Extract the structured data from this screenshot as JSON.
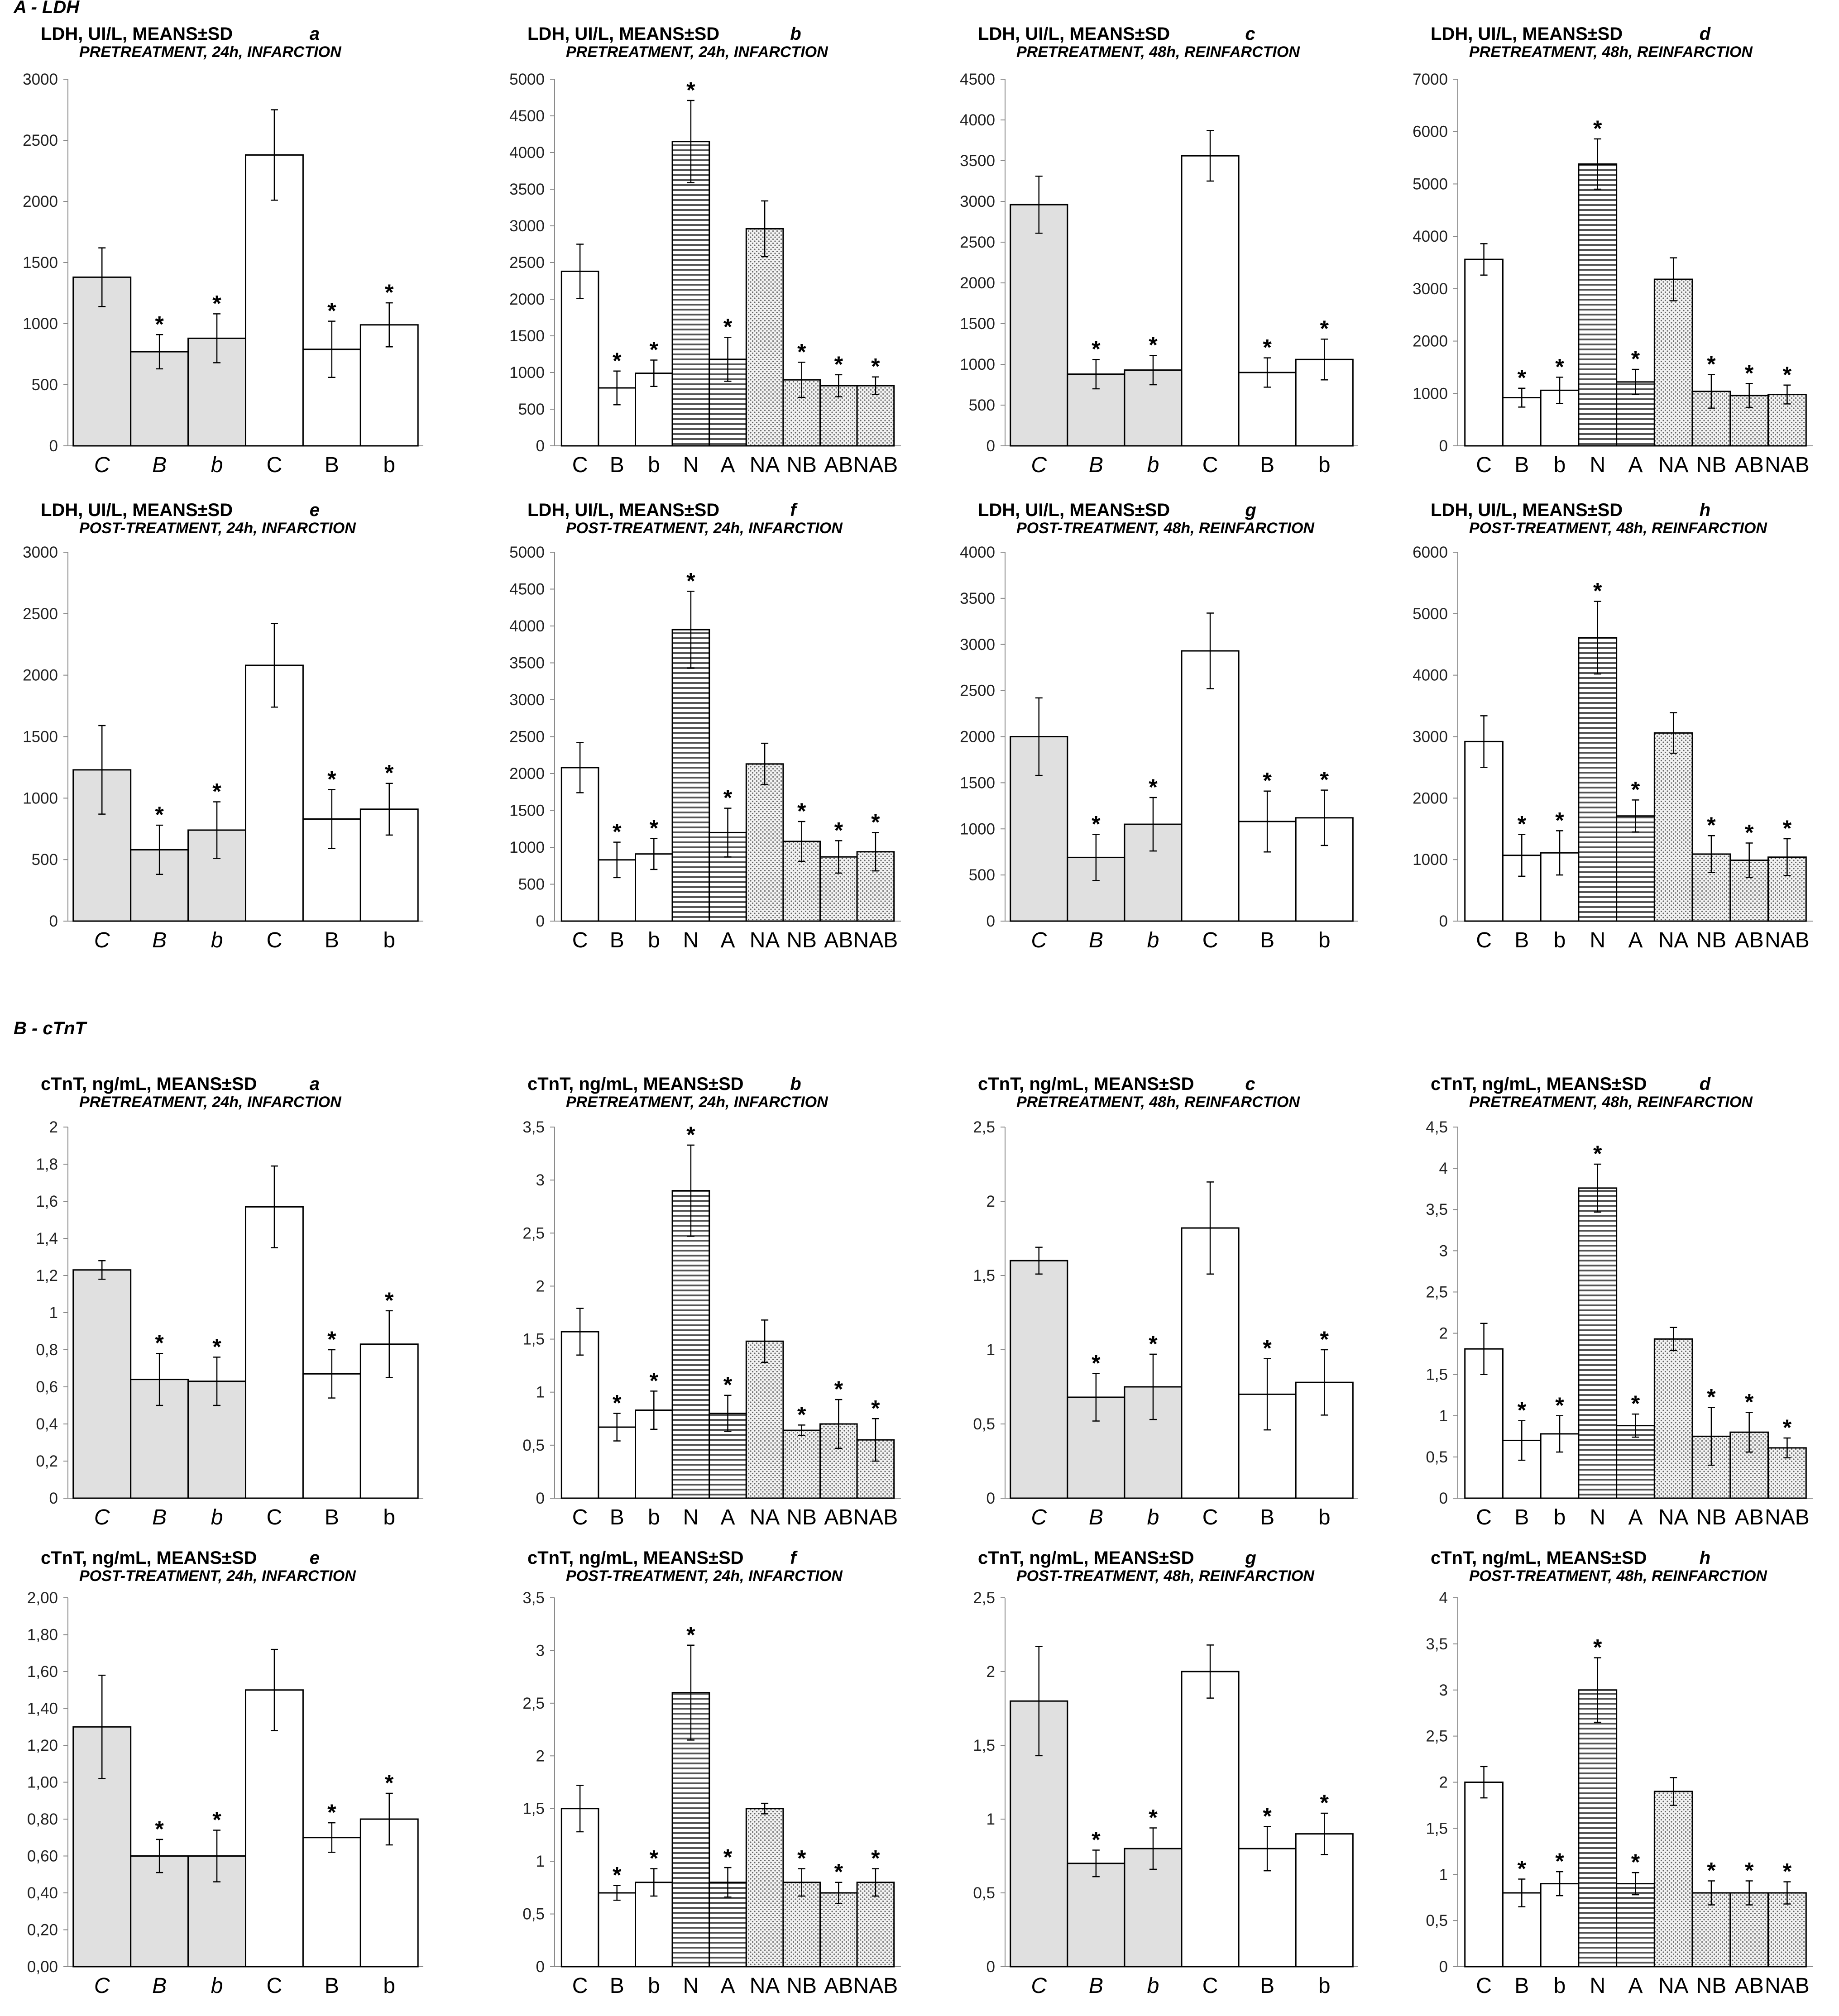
{
  "sections": [
    {
      "title": "A - LDH"
    },
    {
      "title": "B - cTnT"
    }
  ],
  "styles": {
    "gray_fill": "#e0e0e0",
    "white_fill": "#ffffff",
    "hatch_color": "#555555",
    "dot_color": "#666666",
    "stroke": "#000000",
    "axis_color": "#8a8a8a"
  },
  "chart_data": [
    {
      "id": "A-a",
      "type": "bar",
      "title": "LDH, UI/L, MEANS±SD",
      "letter": "a",
      "subtitle": "PRETREATMENT, 24h, INFARCTION",
      "ylim": [
        0,
        3000
      ],
      "yticks": [
        "0",
        "500",
        "1000",
        "1500",
        "2000",
        "2500",
        "3000"
      ],
      "categories": [
        "C",
        "B",
        "b",
        "C",
        "B",
        "b"
      ],
      "italic": [
        true,
        true,
        true,
        false,
        false,
        false
      ],
      "values": [
        1380,
        770,
        880,
        2380,
        790,
        990
      ],
      "errors": [
        240,
        140,
        200,
        370,
        230,
        180
      ],
      "fills": [
        "gray",
        "gray",
        "gray",
        "white",
        "white",
        "white"
      ],
      "sig": [
        false,
        true,
        true,
        false,
        true,
        true
      ]
    },
    {
      "id": "A-b",
      "type": "bar",
      "title": "LDH, UI/L, MEANS±SD",
      "letter": "b",
      "subtitle": "PRETREATMENT, 24h, INFARCTION",
      "ylim": [
        0,
        5000
      ],
      "yticks": [
        "0",
        "500",
        "1000",
        "1500",
        "2000",
        "2500",
        "3000",
        "3500",
        "4000",
        "4500",
        "5000"
      ],
      "categories": [
        "C",
        "B",
        "b",
        "N",
        "A",
        "NA",
        "NB",
        "AB",
        "NAB"
      ],
      "italic": [
        false,
        false,
        false,
        false,
        false,
        false,
        false,
        false,
        false
      ],
      "values": [
        2380,
        790,
        990,
        4150,
        1180,
        2960,
        900,
        820,
        820
      ],
      "errors": [
        370,
        230,
        180,
        560,
        300,
        380,
        240,
        150,
        120
      ],
      "fills": [
        "white",
        "white",
        "white",
        "hatch",
        "hatch",
        "dots",
        "dots",
        "dots",
        "dots"
      ],
      "sig": [
        false,
        true,
        true,
        true,
        true,
        false,
        true,
        true,
        true
      ]
    },
    {
      "id": "A-c",
      "type": "bar",
      "title": "LDH, UI/L, MEANS±SD",
      "letter": "c",
      "subtitle": "PRETREATMENT, 48h, REINFARCTION",
      "ylim": [
        0,
        4500
      ],
      "yticks": [
        "0",
        "500",
        "1000",
        "1500",
        "2000",
        "2500",
        "3000",
        "3500",
        "4000",
        "4500"
      ],
      "categories": [
        "C",
        "B",
        "b",
        "C",
        "B",
        "b"
      ],
      "italic": [
        true,
        true,
        true,
        false,
        false,
        false
      ],
      "values": [
        2960,
        880,
        930,
        3560,
        900,
        1060
      ],
      "errors": [
        350,
        180,
        180,
        310,
        180,
        250
      ],
      "fills": [
        "gray",
        "gray",
        "gray",
        "white",
        "white",
        "white"
      ],
      "sig": [
        false,
        true,
        true,
        false,
        true,
        true
      ]
    },
    {
      "id": "A-d",
      "type": "bar",
      "title": "LDH, UI/L, MEANS±SD",
      "letter": "d",
      "subtitle": "PRETREATMENT, 48h, REINFARCTION",
      "ylim": [
        0,
        7000
      ],
      "yticks": [
        "0",
        "1000",
        "2000",
        "3000",
        "4000",
        "5000",
        "6000",
        "7000"
      ],
      "categories": [
        "C",
        "B",
        "b",
        "N",
        "A",
        "NA",
        "NB",
        "AB",
        "NAB"
      ],
      "italic": [
        false,
        false,
        false,
        false,
        false,
        false,
        false,
        false,
        false
      ],
      "values": [
        3560,
        920,
        1060,
        5380,
        1220,
        3180,
        1040,
        960,
        980
      ],
      "errors": [
        300,
        180,
        250,
        480,
        240,
        410,
        320,
        230,
        180
      ],
      "fills": [
        "white",
        "white",
        "white",
        "hatch",
        "hatch",
        "dots",
        "dots",
        "dots",
        "dots"
      ],
      "sig": [
        false,
        true,
        true,
        true,
        true,
        false,
        true,
        true,
        true
      ]
    },
    {
      "id": "A-e",
      "type": "bar",
      "title": "LDH, UI/L, MEANS±SD",
      "letter": "e",
      "subtitle": "POST-TREATMENT, 24h, INFARCTION",
      "ylim": [
        0,
        3000
      ],
      "yticks": [
        "0",
        "500",
        "1000",
        "1500",
        "2000",
        "2500",
        "3000"
      ],
      "categories": [
        "C",
        "B",
        "b",
        "C",
        "B",
        "b"
      ],
      "italic": [
        true,
        true,
        true,
        false,
        false,
        false
      ],
      "values": [
        1230,
        580,
        740,
        2080,
        830,
        910
      ],
      "errors": [
        360,
        200,
        230,
        340,
        240,
        210
      ],
      "fills": [
        "gray",
        "gray",
        "gray",
        "white",
        "white",
        "white"
      ],
      "sig": [
        false,
        true,
        true,
        false,
        true,
        true
      ]
    },
    {
      "id": "A-f",
      "type": "bar",
      "title": "LDH, UI/L, MEANS±SD",
      "letter": "f",
      "subtitle": "POST-TREATMENT, 24h, INFARCTION",
      "ylim": [
        0,
        5000
      ],
      "yticks": [
        "0",
        "500",
        "1000",
        "1500",
        "2000",
        "2500",
        "3000",
        "3500",
        "4000",
        "4500",
        "5000"
      ],
      "categories": [
        "C",
        "B",
        "b",
        "N",
        "A",
        "NA",
        "NB",
        "AB",
        "NAB"
      ],
      "italic": [
        false,
        false,
        false,
        false,
        false,
        false,
        false,
        false,
        false
      ],
      "values": [
        2080,
        830,
        910,
        3950,
        1200,
        2130,
        1080,
        870,
        940
      ],
      "errors": [
        340,
        240,
        210,
        520,
        330,
        280,
        270,
        220,
        260
      ],
      "fills": [
        "white",
        "white",
        "white",
        "hatch",
        "hatch",
        "dots",
        "dots",
        "dots",
        "dots"
      ],
      "sig": [
        false,
        true,
        true,
        true,
        true,
        false,
        true,
        true,
        true
      ]
    },
    {
      "id": "A-g",
      "type": "bar",
      "title": "LDH, UI/L, MEANS±SD",
      "letter": "g",
      "subtitle": "POST-TREATMENT, 48h, REINFARCTION",
      "ylim": [
        0,
        4000
      ],
      "yticks": [
        "0",
        "500",
        "1000",
        "1500",
        "2000",
        "2500",
        "3000",
        "3500",
        "4000"
      ],
      "categories": [
        "C",
        "B",
        "b",
        "C",
        "B",
        "b"
      ],
      "italic": [
        true,
        true,
        true,
        false,
        false,
        false
      ],
      "values": [
        2000,
        690,
        1050,
        2930,
        1080,
        1120
      ],
      "errors": [
        420,
        250,
        290,
        410,
        330,
        300
      ],
      "fills": [
        "gray",
        "gray",
        "gray",
        "white",
        "white",
        "white"
      ],
      "sig": [
        false,
        true,
        true,
        false,
        true,
        true
      ]
    },
    {
      "id": "A-h",
      "type": "bar",
      "title": "LDH, UI/L, MEANS±SD",
      "letter": "h",
      "subtitle": "POST-TREATMENT, 48h, REINFARCTION",
      "ylim": [
        0,
        6000
      ],
      "yticks": [
        "0",
        "1000",
        "2000",
        "3000",
        "4000",
        "5000",
        "6000"
      ],
      "categories": [
        "C",
        "B",
        "b",
        "N",
        "A",
        "NA",
        "NB",
        "AB",
        "NAB"
      ],
      "italic": [
        false,
        false,
        false,
        false,
        false,
        false,
        false,
        false,
        false
      ],
      "values": [
        2920,
        1070,
        1110,
        4610,
        1710,
        3060,
        1090,
        990,
        1040
      ],
      "errors": [
        420,
        340,
        360,
        590,
        260,
        330,
        300,
        280,
        300
      ],
      "fills": [
        "white",
        "white",
        "white",
        "hatch",
        "hatch",
        "dots",
        "dots",
        "dots",
        "dots"
      ],
      "sig": [
        false,
        true,
        true,
        true,
        true,
        false,
        true,
        true,
        true
      ]
    },
    {
      "id": "B-a",
      "type": "bar",
      "title": "cTnT, ng/mL, MEANS±SD",
      "letter": "a",
      "subtitle": "PRETREATMENT, 24h, INFARCTION",
      "ylim": [
        0,
        2
      ],
      "yticks": [
        "0",
        "0,2",
        "0,4",
        "0,6",
        "0,8",
        "1",
        "1,2",
        "1,4",
        "1,6",
        "1,8",
        "2"
      ],
      "categories": [
        "C",
        "B",
        "b",
        "C",
        "B",
        "b"
      ],
      "italic": [
        true,
        true,
        true,
        false,
        false,
        false
      ],
      "values": [
        1.23,
        0.64,
        0.63,
        1.57,
        0.67,
        0.83
      ],
      "errors": [
        0.05,
        0.14,
        0.13,
        0.22,
        0.13,
        0.18
      ],
      "fills": [
        "gray",
        "gray",
        "gray",
        "white",
        "white",
        "white"
      ],
      "sig": [
        false,
        true,
        true,
        false,
        true,
        true
      ]
    },
    {
      "id": "B-b",
      "type": "bar",
      "title": "cTnT, ng/mL, MEANS±SD",
      "letter": "b",
      "subtitle": "PRETREATMENT, 24h, INFARCTION",
      "ylim": [
        0,
        3.5
      ],
      "yticks": [
        "0",
        "0,5",
        "1",
        "1,5",
        "2",
        "2,5",
        "3",
        "3,5"
      ],
      "categories": [
        "C",
        "B",
        "b",
        "N",
        "A",
        "NA",
        "NB",
        "AB",
        "NAB"
      ],
      "italic": [
        false,
        false,
        false,
        false,
        false,
        false,
        false,
        false,
        false
      ],
      "values": [
        1.57,
        0.67,
        0.83,
        2.9,
        0.8,
        1.48,
        0.64,
        0.7,
        0.55
      ],
      "errors": [
        0.22,
        0.13,
        0.18,
        0.43,
        0.17,
        0.2,
        0.05,
        0.23,
        0.2
      ],
      "fills": [
        "white",
        "white",
        "white",
        "hatch",
        "hatch",
        "dots",
        "dots",
        "dots",
        "dots"
      ],
      "sig": [
        false,
        true,
        true,
        true,
        true,
        false,
        true,
        true,
        true
      ]
    },
    {
      "id": "B-c",
      "type": "bar",
      "title": "cTnT, ng/mL, MEANS±SD",
      "letter": "c",
      "subtitle": "PRETREATMENT, 48h, REINFARCTION",
      "ylim": [
        0,
        2.5
      ],
      "yticks": [
        "0",
        "0,5",
        "1",
        "1,5",
        "2",
        "2,5"
      ],
      "categories": [
        "C",
        "B",
        "b",
        "C",
        "B",
        "b"
      ],
      "italic": [
        true,
        true,
        true,
        false,
        false,
        false
      ],
      "values": [
        1.6,
        0.68,
        0.75,
        1.82,
        0.7,
        0.78
      ],
      "errors": [
        0.09,
        0.16,
        0.22,
        0.31,
        0.24,
        0.22
      ],
      "fills": [
        "gray",
        "gray",
        "gray",
        "white",
        "white",
        "white"
      ],
      "sig": [
        false,
        true,
        true,
        false,
        true,
        true
      ]
    },
    {
      "id": "B-d",
      "type": "bar",
      "title": "cTnT, ng/mL, MEANS±SD",
      "letter": "d",
      "subtitle": "PRETREATMENT, 48h, REINFARCTION",
      "ylim": [
        0,
        4.5
      ],
      "yticks": [
        "0",
        "0,5",
        "1",
        "1,5",
        "2",
        "2,5",
        "3",
        "3,5",
        "4",
        "4,5"
      ],
      "categories": [
        "C",
        "B",
        "b",
        "N",
        "A",
        "NA",
        "NB",
        "AB",
        "NAB"
      ],
      "italic": [
        false,
        false,
        false,
        false,
        false,
        false,
        false,
        false,
        false
      ],
      "values": [
        1.81,
        0.7,
        0.78,
        3.76,
        0.88,
        1.93,
        0.75,
        0.8,
        0.61
      ],
      "errors": [
        0.31,
        0.24,
        0.22,
        0.29,
        0.14,
        0.14,
        0.35,
        0.24,
        0.12
      ],
      "fills": [
        "white",
        "white",
        "white",
        "hatch",
        "hatch",
        "dots",
        "dots",
        "dots",
        "dots"
      ],
      "sig": [
        false,
        true,
        true,
        true,
        true,
        false,
        true,
        true,
        true
      ]
    },
    {
      "id": "B-e",
      "type": "bar",
      "title": "cTnT, ng/mL, MEANS±SD",
      "letter": "e",
      "subtitle": "POST-TREATMENT, 24h, INFARCTION",
      "ylim": [
        0,
        2
      ],
      "yticks": [
        "0,00",
        "0,20",
        "0,40",
        "0,60",
        "0,80",
        "1,00",
        "1,20",
        "1,40",
        "1,60",
        "1,80",
        "2,00"
      ],
      "categories": [
        "C",
        "B",
        "b",
        "C",
        "B",
        "b"
      ],
      "italic": [
        true,
        true,
        true,
        false,
        false,
        false
      ],
      "values": [
        1.3,
        0.6,
        0.6,
        1.5,
        0.7,
        0.8
      ],
      "errors": [
        0.28,
        0.09,
        0.14,
        0.22,
        0.08,
        0.14
      ],
      "fills": [
        "gray",
        "gray",
        "gray",
        "white",
        "white",
        "white"
      ],
      "sig": [
        false,
        true,
        true,
        false,
        true,
        true
      ]
    },
    {
      "id": "B-f",
      "type": "bar",
      "title": "cTnT, ng/mL, MEANS±SD",
      "letter": "f",
      "subtitle": "POST-TREATMENT, 24h, INFARCTION",
      "ylim": [
        0,
        3.5
      ],
      "yticks": [
        "0",
        "0,5",
        "1",
        "1,5",
        "2",
        "2,5",
        "3",
        "3,5"
      ],
      "categories": [
        "C",
        "B",
        "b",
        "N",
        "A",
        "NA",
        "NB",
        "AB",
        "NAB"
      ],
      "italic": [
        false,
        false,
        false,
        false,
        false,
        false,
        false,
        false,
        false
      ],
      "values": [
        1.5,
        0.7,
        0.8,
        2.6,
        0.8,
        1.5,
        0.8,
        0.7,
        0.8
      ],
      "errors": [
        0.22,
        0.07,
        0.13,
        0.45,
        0.14,
        0.05,
        0.13,
        0.1,
        0.13
      ],
      "fills": [
        "white",
        "white",
        "white",
        "hatch",
        "hatch",
        "dots",
        "dots",
        "dots",
        "dots"
      ],
      "sig": [
        false,
        true,
        true,
        true,
        true,
        false,
        true,
        true,
        true
      ]
    },
    {
      "id": "B-g",
      "type": "bar",
      "title": "cTnT, ng/mL, MEANS±SD",
      "letter": "g",
      "subtitle": "POST-TREATMENT, 48h, REINFARCTION",
      "ylim": [
        0,
        2.5
      ],
      "yticks": [
        "0",
        "0,5",
        "1",
        "1,5",
        "2",
        "2,5"
      ],
      "categories": [
        "C",
        "B",
        "b",
        "C",
        "B",
        "b"
      ],
      "italic": [
        true,
        true,
        true,
        false,
        false,
        false
      ],
      "values": [
        1.8,
        0.7,
        0.8,
        2.0,
        0.8,
        0.9
      ],
      "errors": [
        0.37,
        0.09,
        0.14,
        0.18,
        0.15,
        0.14
      ],
      "fills": [
        "gray",
        "gray",
        "gray",
        "white",
        "white",
        "white"
      ],
      "sig": [
        false,
        true,
        true,
        false,
        true,
        true
      ]
    },
    {
      "id": "B-h",
      "type": "bar",
      "title": "cTnT, ng/mL, MEANS±SD",
      "letter": "h",
      "subtitle": "POST-TREATMENT, 48h, REINFARCTION",
      "ylim": [
        0,
        4
      ],
      "yticks": [
        "0",
        "0,5",
        "1",
        "1,5",
        "2",
        "2,5",
        "3",
        "3,5",
        "4"
      ],
      "categories": [
        "C",
        "B",
        "b",
        "N",
        "A",
        "NA",
        "NB",
        "AB",
        "NAB"
      ],
      "italic": [
        false,
        false,
        false,
        false,
        false,
        false,
        false,
        false,
        false
      ],
      "values": [
        2.0,
        0.8,
        0.9,
        3.0,
        0.9,
        1.9,
        0.8,
        0.8,
        0.8
      ],
      "errors": [
        0.17,
        0.15,
        0.13,
        0.35,
        0.12,
        0.15,
        0.13,
        0.13,
        0.12
      ],
      "fills": [
        "white",
        "white",
        "white",
        "hatch",
        "hatch",
        "dots",
        "dots",
        "dots",
        "dots"
      ],
      "sig": [
        false,
        true,
        true,
        true,
        true,
        false,
        true,
        true,
        true
      ]
    }
  ]
}
